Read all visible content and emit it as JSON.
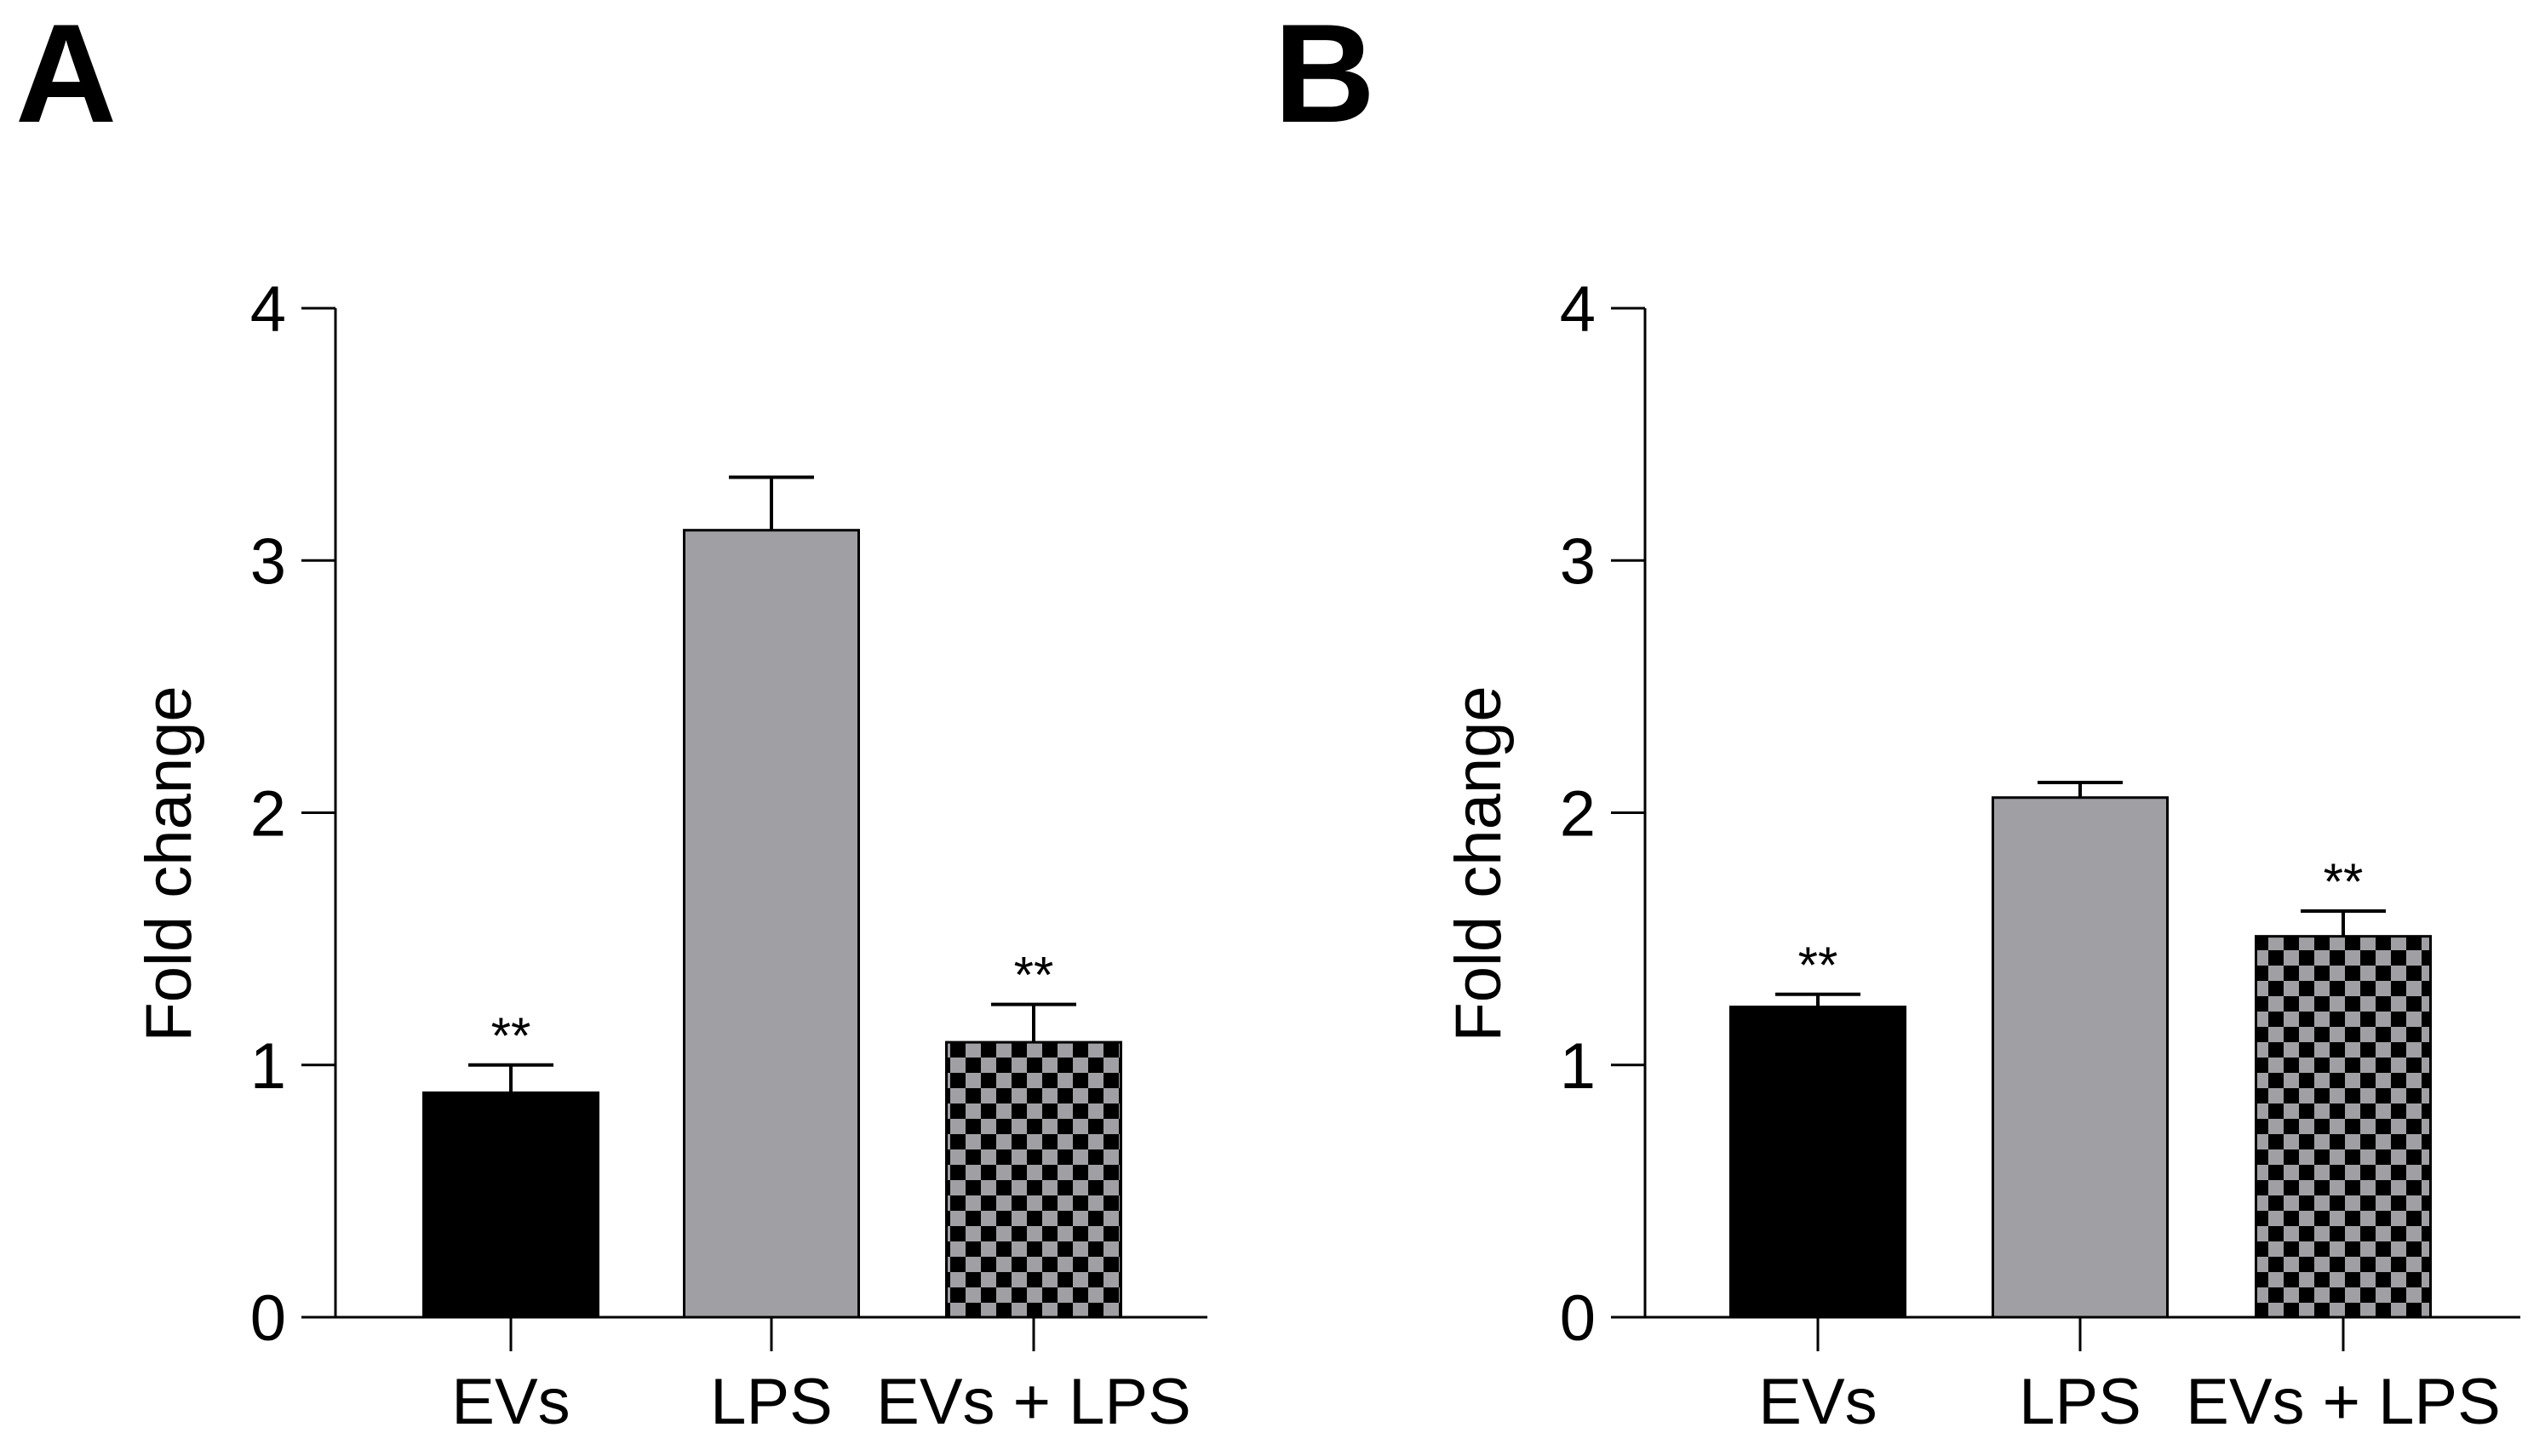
{
  "chart_data": [
    {
      "panel_label": "A",
      "type": "bar",
      "categories": [
        "EVs",
        "LPS",
        "EVs + LPS"
      ],
      "values": [
        0.89,
        3.12,
        1.09
      ],
      "error_upper": [
        1.0,
        3.33,
        1.24
      ],
      "significance": [
        "**",
        "",
        "**"
      ],
      "fills": [
        "solid-black",
        "solid-gray",
        "checkerboard"
      ],
      "ylabel": "Fold change",
      "xlabel": "",
      "ylim": [
        0,
        4
      ],
      "yticks": [
        "0",
        "1",
        "2",
        "3",
        "4"
      ],
      "grid": false
    },
    {
      "panel_label": "B",
      "type": "bar",
      "categories": [
        "EVs",
        "LPS",
        "EVs + LPS"
      ],
      "values": [
        1.23,
        2.06,
        1.51
      ],
      "error_upper": [
        1.28,
        2.12,
        1.61
      ],
      "significance": [
        "**",
        "",
        "**"
      ],
      "fills": [
        "solid-black",
        "solid-gray",
        "checkerboard"
      ],
      "ylabel": "Fold change",
      "xlabel": "",
      "ylim": [
        0,
        4
      ],
      "yticks": [
        "0",
        "1",
        "2",
        "3",
        "4"
      ],
      "grid": false
    }
  ],
  "colors": {
    "black": "#000000",
    "gray": "#a0a0a4",
    "axis": "#000000"
  }
}
